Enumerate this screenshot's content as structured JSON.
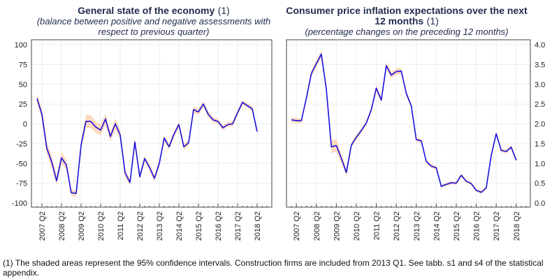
{
  "footnote": "(1) The shaded areas represent the 95% confidence intervals. Construction firms are included from 2013 Q1. See tabb. s1 and s4 of the statistical appendix.",
  "colors": {
    "line": "#1a10e0",
    "band": "#fcd9bd",
    "grid": "#e6eff0",
    "frame": "#444444",
    "title": "#1f2a4d"
  },
  "chart_data": [
    {
      "type": "line",
      "title": "General state of the economy",
      "title_note": "(1)",
      "subtitle": "(balance between positive and negative assessments with respect to previous quarter)",
      "xlabel": "",
      "ylabel": "",
      "ylim": [
        -100,
        100
      ],
      "yticks": [
        100,
        75,
        50,
        25,
        0,
        -25,
        -50,
        -75,
        -100
      ],
      "ytick_labels": [
        "100",
        "75",
        "50",
        "25",
        "0",
        "-25",
        "-50",
        "-75",
        "-100"
      ],
      "y_axis_side": "left",
      "grid": true,
      "x_start": "2007 Q1",
      "xtick_labels": [
        "2007 Q2",
        "2008 Q2",
        "2009 Q2",
        "2010 Q2",
        "2011 Q2",
        "2012 Q2",
        "2013 Q2",
        "2014 Q2",
        "2015 Q2",
        "2016 Q2",
        "2017 Q2",
        "2018 Q2"
      ],
      "series": [
        {
          "name": "balance",
          "values": [
            32,
            12,
            -31,
            -48,
            -72,
            -43,
            -52,
            -87,
            -88,
            -27,
            3,
            3,
            -4,
            -8,
            6,
            -16,
            0,
            -14,
            -62,
            -74,
            -23,
            -67,
            -44,
            -55,
            -69,
            -50,
            -18,
            -29,
            -13,
            -1,
            -29,
            -24,
            18,
            15,
            25,
            12,
            5,
            3,
            -5,
            -1,
            0,
            14,
            27,
            23,
            19,
            -10
          ],
          "ci_width": [
            6,
            7,
            8,
            8,
            6,
            7,
            6,
            4,
            4,
            6,
            8,
            8,
            7,
            7,
            7,
            6,
            7,
            6,
            5,
            4,
            5,
            4,
            4,
            4,
            4,
            4,
            4,
            4,
            4,
            4,
            4,
            4,
            4,
            4,
            4,
            4,
            3,
            3,
            3,
            3,
            3,
            3,
            3,
            3,
            3,
            3
          ]
        }
      ]
    },
    {
      "type": "line",
      "title": "Consumer price inflation expectations over the next 12 months",
      "title_note": "(1)",
      "subtitle": "(percentage changes on the preceding 12 months)",
      "xlabel": "",
      "ylabel": "",
      "ylim": [
        0,
        4
      ],
      "yticks": [
        4.0,
        3.5,
        3.0,
        2.5,
        2.0,
        1.5,
        1.0,
        0.5,
        0.0
      ],
      "ytick_labels": [
        "4.0",
        "3.5",
        "3.0",
        "2.5",
        "2.0",
        "1.5",
        "1.0",
        "0.5",
        "0.0"
      ],
      "y_axis_side": "right",
      "grid": true,
      "x_start": "2007 Q1",
      "xtick_labels": [
        "2007 Q2",
        "2008 Q2",
        "2009 Q2",
        "2010 Q2",
        "2011 Q2",
        "2012 Q2",
        "2013 Q2",
        "2014 Q2",
        "2015 Q2",
        "2016 Q2",
        "2017 Q2",
        "2018 Q2"
      ],
      "series": [
        {
          "name": "expectations",
          "values": [
            2.1,
            2.08,
            2.08,
            2.65,
            3.27,
            3.52,
            3.76,
            2.87,
            1.42,
            1.45,
            1.13,
            0.77,
            1.46,
            1.66,
            1.83,
            2.02,
            2.36,
            2.9,
            2.6,
            3.47,
            3.23,
            3.32,
            3.33,
            2.77,
            2.45,
            1.6,
            1.57,
            1.05,
            0.93,
            0.89,
            0.42,
            0.47,
            0.51,
            0.5,
            0.7,
            0.55,
            0.49,
            0.32,
            0.27,
            0.38,
            1.2,
            1.75,
            1.33,
            1.3,
            1.41,
            1.08
          ],
          "ci_width": [
            0.06,
            0.06,
            0.06,
            0.07,
            0.08,
            0.1,
            0.1,
            0.08,
            0.16,
            0.16,
            0.12,
            0.1,
            0.06,
            0.06,
            0.06,
            0.06,
            0.06,
            0.08,
            0.08,
            0.1,
            0.08,
            0.08,
            0.08,
            0.06,
            0.06,
            0.05,
            0.05,
            0.05,
            0.05,
            0.05,
            0.04,
            0.04,
            0.04,
            0.04,
            0.04,
            0.04,
            0.04,
            0.04,
            0.04,
            0.04,
            0.05,
            0.05,
            0.05,
            0.05,
            0.05,
            0.05
          ]
        }
      ]
    }
  ]
}
